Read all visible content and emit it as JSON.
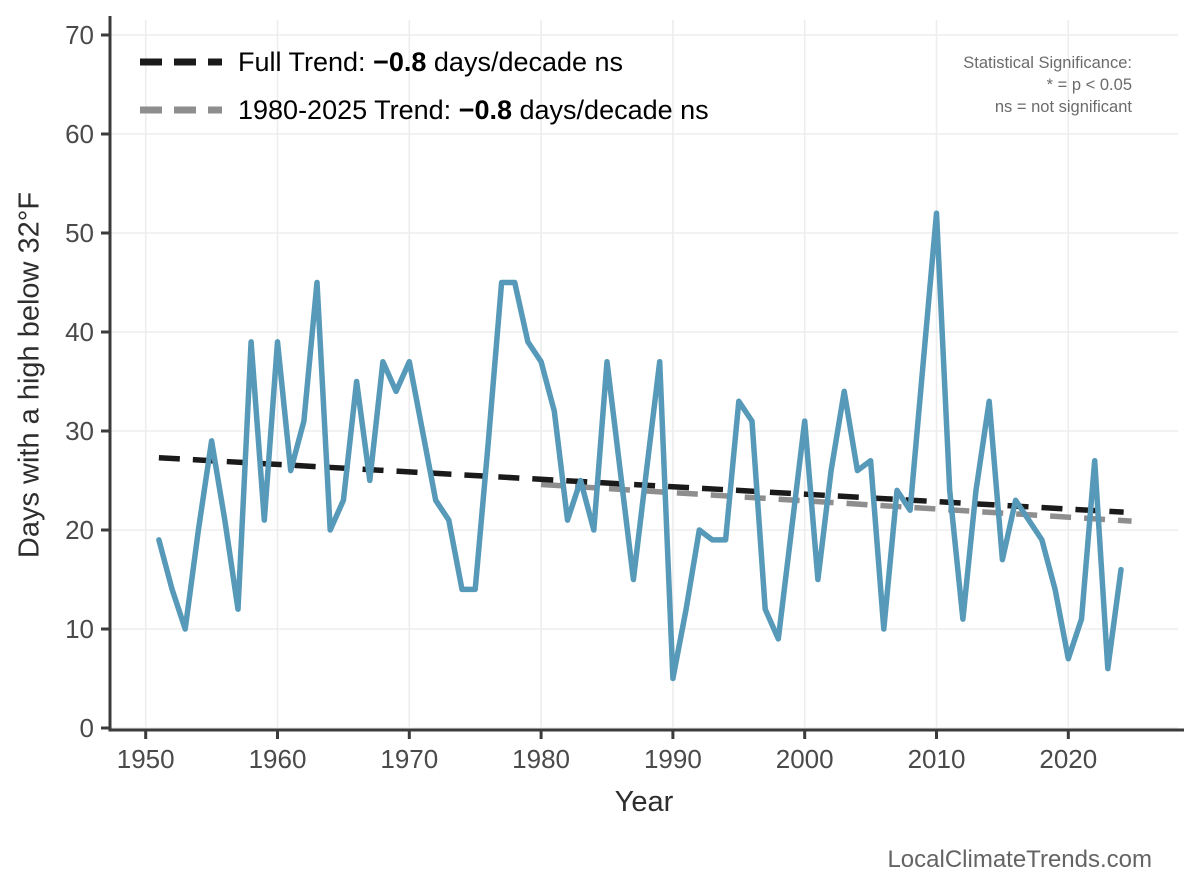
{
  "legend": {
    "full": {
      "prefix": "Full Trend:",
      "value": "−0.8",
      "suffix": "days/decade ns"
    },
    "recent": {
      "prefix": "1980-2025 Trend:",
      "value": "−0.8",
      "suffix": "days/decade ns"
    }
  },
  "stat_note": {
    "line1": "Statistical Significance:",
    "line2": "* = p < 0.05",
    "line3": "ns = not significant"
  },
  "watermark": "LocalClimateTrends.com",
  "chart_data": {
    "type": "line",
    "title": "",
    "xlabel": "Year",
    "ylabel": "Days with a high below 32°F",
    "x_ticks": [
      1950,
      1960,
      1970,
      1980,
      1990,
      2000,
      2010,
      2020
    ],
    "y_ticks": [
      0,
      10,
      20,
      30,
      40,
      50,
      60,
      70
    ],
    "xlim": [
      1947.3,
      2028.8
    ],
    "ylim": [
      0,
      71.5
    ],
    "grid": true,
    "legend_position": "top-left inside",
    "colors": {
      "annual": "#5799b8",
      "full_trend": "#1a1a1a",
      "recent_trend": "#8e8e8e",
      "gridline": "#ededed",
      "axis": "#3b3b3b",
      "tick_label": "#4a4a4a"
    },
    "series": [
      {
        "name": "1980-2025 trend",
        "role": "recent_trend",
        "style": "dashed",
        "color": "#8e8e8e",
        "slope_per_decade": -0.8,
        "significance": "ns",
        "points": [
          [
            1980,
            24.6
          ],
          [
            2024.8,
            20.9
          ]
        ]
      },
      {
        "name": "Full trend",
        "role": "full_trend",
        "style": "dashed",
        "color": "#1a1a1a",
        "slope_per_decade": -0.8,
        "significance": "ns",
        "points": [
          [
            1951,
            27.3
          ],
          [
            2024.2,
            21.8
          ]
        ]
      },
      {
        "name": "Days with a high below 32°F",
        "role": "annual",
        "style": "solid",
        "color": "#5799b8",
        "x_start": 1951,
        "values": [
          19,
          14,
          10,
          20,
          29,
          21,
          12,
          39,
          21,
          39,
          26,
          31,
          45,
          20,
          23,
          35,
          25,
          37,
          34,
          37,
          30,
          23,
          21,
          14,
          14,
          29,
          45,
          45,
          39,
          37,
          32,
          21,
          25,
          20,
          37,
          26,
          15,
          26,
          37,
          5,
          12,
          20,
          19,
          19,
          33,
          31,
          12,
          9,
          20,
          31,
          15,
          26,
          34,
          26,
          27,
          10,
          24,
          22,
          37,
          52,
          24,
          11,
          24,
          33,
          17,
          23,
          21,
          19,
          14,
          7,
          11,
          27,
          6,
          16
        ]
      }
    ]
  }
}
